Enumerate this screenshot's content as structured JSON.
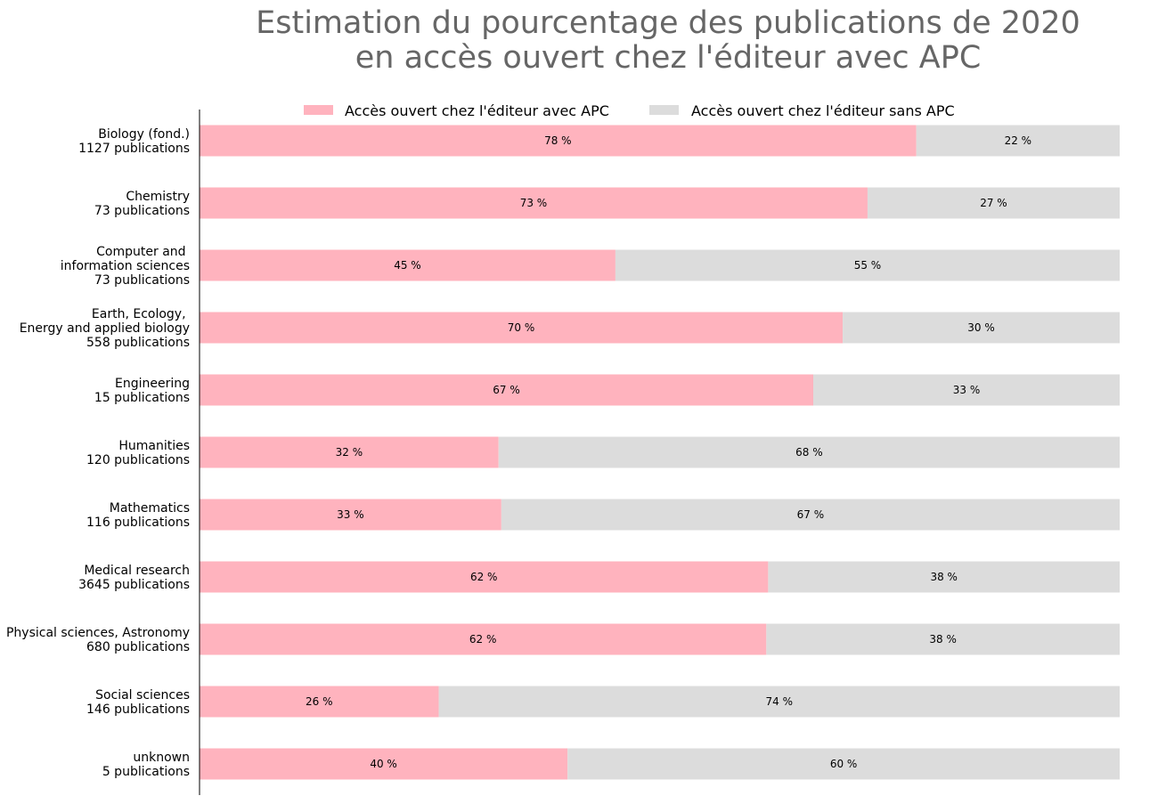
{
  "chart_data": {
    "type": "bar",
    "orientation": "horizontal",
    "stacked": true,
    "title": [
      "Estimation du pourcentage des publications de 2020",
      "en accès ouvert chez l'éditeur avec APC"
    ],
    "categories": [
      [
        "Biology (fond.)",
        "1127 publications"
      ],
      [
        "Chemistry",
        "73 publications"
      ],
      [
        "Computer and ",
        "information sciences",
        "73 publications"
      ],
      [
        "Earth, Ecology, ",
        "Energy and applied biology",
        "558 publications"
      ],
      [
        "Engineering",
        "15 publications"
      ],
      [
        "Humanities",
        "120 publications"
      ],
      [
        "Mathematics",
        "116 publications"
      ],
      [
        "Medical research",
        "3645 publications"
      ],
      [
        "Physical sciences, Astronomy",
        "680 publications"
      ],
      [
        "Social sciences",
        "146 publications"
      ],
      [
        "unknown",
        "5 publications"
      ]
    ],
    "series": [
      {
        "name": "Accès ouvert chez l'éditeur avec APC",
        "color": "#ffb3be",
        "values": [
          77.9,
          72.6,
          45.2,
          69.9,
          66.7,
          32.5,
          32.8,
          61.8,
          61.6,
          26.0,
          40.0
        ],
        "labels": [
          "78 %",
          "73 %",
          "45 %",
          "70 %",
          "67 %",
          "32 %",
          "33 %",
          "62 %",
          "62 %",
          "26 %",
          "40 %"
        ]
      },
      {
        "name": "Accès ouvert chez l'éditeur sans APC",
        "color": "#dcdcdc",
        "values": [
          22.1,
          27.4,
          54.8,
          30.1,
          33.3,
          67.5,
          67.2,
          38.2,
          38.4,
          74.0,
          60.0
        ],
        "labels": [
          "22 %",
          "27 %",
          "55 %",
          "30 %",
          "33 %",
          "68 %",
          "67 %",
          "38 %",
          "38 %",
          "74 %",
          "60 %"
        ]
      }
    ],
    "xlim": [
      0,
      100
    ],
    "x_axis_visible": false,
    "grid": false,
    "legend_position": "top-center"
  }
}
